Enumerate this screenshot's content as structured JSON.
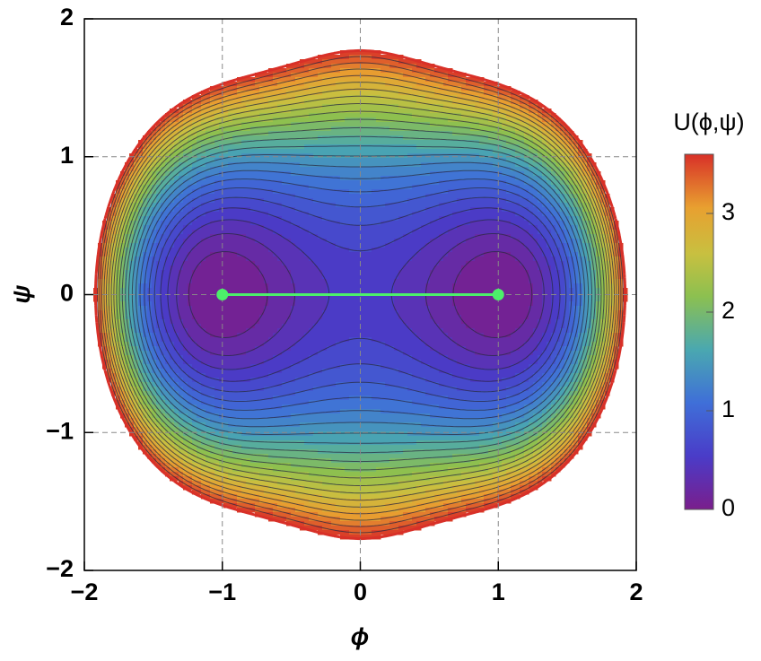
{
  "chart_data": {
    "type": "contour",
    "xlabel": "ϕ",
    "ylabel": "ψ",
    "xlim": [
      -2,
      2
    ],
    "ylim": [
      -2,
      2
    ],
    "xticks": [
      {
        "value": -2,
        "label": "−2"
      },
      {
        "value": -1,
        "label": "−1"
      },
      0,
      1,
      2
    ],
    "yticks": [
      {
        "value": -2,
        "label": "−2"
      },
      {
        "value": -1,
        "label": "−1"
      },
      0,
      1,
      2
    ],
    "grid": true,
    "levels": [
      0.15,
      0.3,
      0.45,
      0.6,
      0.75,
      0.9,
      1.05,
      1.2,
      1.35,
      1.5,
      1.65,
      1.8,
      1.95,
      2.1,
      2.25,
      2.4,
      2.55,
      2.7,
      2.85,
      3.0,
      3.15,
      3.3,
      3.45,
      3.6
    ],
    "colorbar": {
      "title": "U(ϕ,ψ)",
      "lim": [
        0,
        3.6
      ],
      "ticks": [
        0,
        1,
        2,
        3
      ]
    },
    "series": [
      {
        "color": "#4cf06a",
        "x": [
          -1,
          1
        ],
        "values": [
          0,
          0
        ]
      }
    ]
  }
}
